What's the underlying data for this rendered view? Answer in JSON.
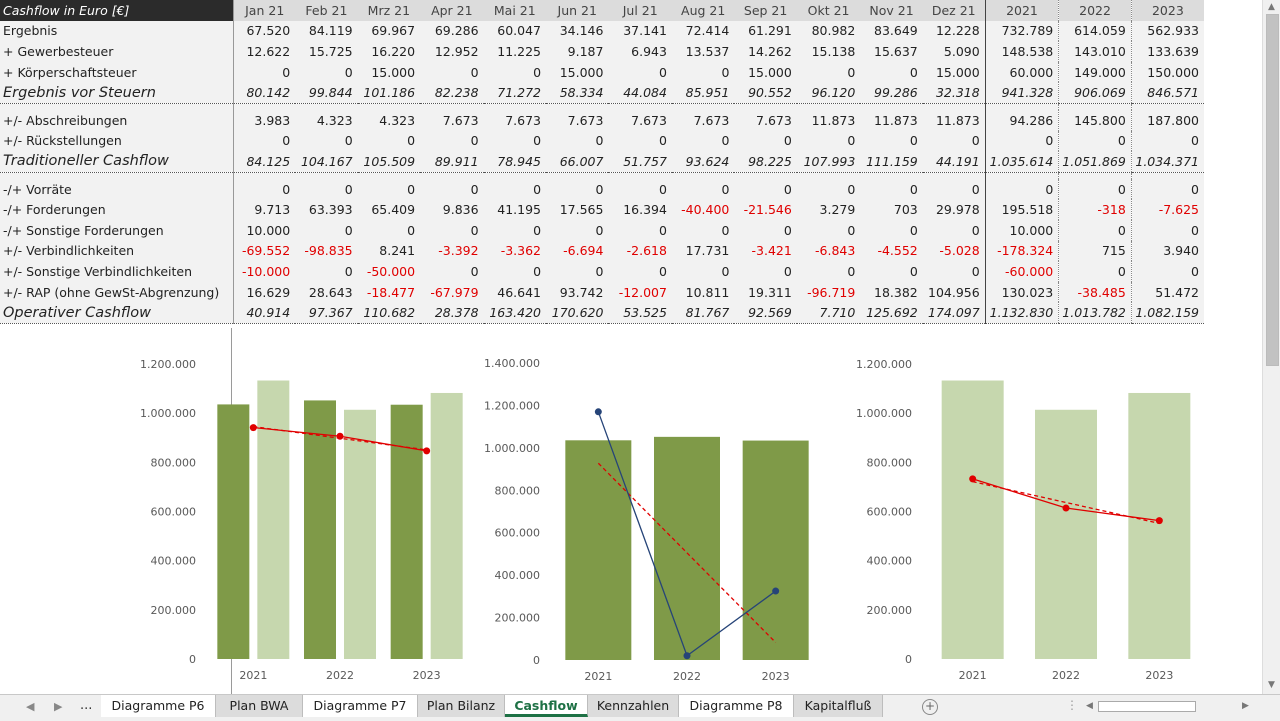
{
  "table": {
    "corner_label": "Cashflow in Euro [€]",
    "columns": [
      "Jan 21",
      "Feb 21",
      "Mrz 21",
      "Apr 21",
      "Mai 21",
      "Jun 21",
      "Jul 21",
      "Aug 21",
      "Sep 21",
      "Okt 21",
      "Nov 21",
      "Dez 21",
      "2021",
      "2022",
      "2023"
    ],
    "rows": [
      {
        "label": "Ergebnis",
        "kind": "normal",
        "values": [
          "67.520",
          "84.119",
          "69.967",
          "69.286",
          "60.047",
          "34.146",
          "37.141",
          "72.414",
          "61.291",
          "80.982",
          "83.649",
          "12.228",
          "732.789",
          "614.059",
          "562.933"
        ]
      },
      {
        "label": "+ Gewerbesteuer",
        "kind": "normal",
        "values": [
          "12.622",
          "15.725",
          "16.220",
          "12.952",
          "11.225",
          "9.187",
          "6.943",
          "13.537",
          "14.262",
          "15.138",
          "15.637",
          "5.090",
          "148.538",
          "143.010",
          "133.639"
        ]
      },
      {
        "label": "+ Körperschaftsteuer",
        "kind": "normal",
        "values": [
          "0",
          "0",
          "15.000",
          "0",
          "0",
          "15.000",
          "0",
          "0",
          "15.000",
          "0",
          "0",
          "15.000",
          "60.000",
          "149.000",
          "150.000"
        ]
      },
      {
        "label": "Ergebnis vor Steuern",
        "kind": "sum-sep",
        "values": [
          "80.142",
          "99.844",
          "101.186",
          "82.238",
          "71.272",
          "58.334",
          "44.084",
          "85.951",
          "90.552",
          "96.120",
          "99.286",
          "32.318",
          "941.328",
          "906.069",
          "846.571"
        ]
      },
      {
        "kind": "blank"
      },
      {
        "label": "+/- Abschreibungen",
        "kind": "normal",
        "values": [
          "3.983",
          "4.323",
          "4.323",
          "7.673",
          "7.673",
          "7.673",
          "7.673",
          "7.673",
          "7.673",
          "11.873",
          "11.873",
          "11.873",
          "94.286",
          "145.800",
          "187.800"
        ]
      },
      {
        "label": "+/- Rückstellungen",
        "kind": "normal",
        "values": [
          "0",
          "0",
          "0",
          "0",
          "0",
          "0",
          "0",
          "0",
          "0",
          "0",
          "0",
          "0",
          "0",
          "0",
          "0"
        ]
      },
      {
        "label": "Traditioneller Cashflow",
        "kind": "sum-sep",
        "values": [
          "84.125",
          "104.167",
          "105.509",
          "89.911",
          "78.945",
          "66.007",
          "51.757",
          "93.624",
          "98.225",
          "107.993",
          "111.159",
          "44.191",
          "1.035.614",
          "1.051.869",
          "1.034.371"
        ]
      },
      {
        "kind": "blank"
      },
      {
        "label": "-/+ Vorräte",
        "kind": "normal",
        "values": [
          "0",
          "0",
          "0",
          "0",
          "0",
          "0",
          "0",
          "0",
          "0",
          "0",
          "0",
          "0",
          "0",
          "0",
          "0"
        ]
      },
      {
        "label": "-/+ Forderungen",
        "kind": "normal",
        "values": [
          "9.713",
          "63.393",
          "65.409",
          "9.836",
          "41.195",
          "17.565",
          "16.394",
          "-40.400",
          "-21.546",
          "3.279",
          "703",
          "29.978",
          "195.518",
          "-318",
          "-7.625"
        ]
      },
      {
        "label": "-/+ Sonstige Forderungen",
        "kind": "normal",
        "values": [
          "10.000",
          "0",
          "0",
          "0",
          "0",
          "0",
          "0",
          "0",
          "0",
          "0",
          "0",
          "0",
          "10.000",
          "0",
          "0"
        ]
      },
      {
        "label": "+/- Verbindlichkeiten",
        "kind": "normal",
        "values": [
          "-69.552",
          "-98.835",
          "8.241",
          "-3.392",
          "-3.362",
          "-6.694",
          "-2.618",
          "17.731",
          "-3.421",
          "-6.843",
          "-4.552",
          "-5.028",
          "-178.324",
          "715",
          "3.940"
        ]
      },
      {
        "label": "+/- Sonstige Verbindlichkeiten",
        "kind": "normal",
        "values": [
          "-10.000",
          "0",
          "-50.000",
          "0",
          "0",
          "0",
          "0",
          "0",
          "0",
          "0",
          "0",
          "0",
          "-60.000",
          "0",
          "0"
        ]
      },
      {
        "label": "+/- RAP (ohne GewSt-Abgrenzung)",
        "kind": "normal",
        "values": [
          "16.629",
          "28.643",
          "-18.477",
          "-67.979",
          "46.641",
          "93.742",
          "-12.007",
          "10.811",
          "19.311",
          "-96.719",
          "18.382",
          "104.956",
          "130.023",
          "-38.485",
          "51.472"
        ]
      },
      {
        "label": "Operativer Cashflow",
        "kind": "sum-sep",
        "values": [
          "40.914",
          "97.367",
          "110.682",
          "28.378",
          "163.420",
          "170.620",
          "53.525",
          "81.767",
          "92.569",
          "7.710",
          "125.692",
          "174.097",
          "1.132.830",
          "1.013.782",
          "1.082.159"
        ]
      }
    ]
  },
  "chart_data": [
    {
      "type": "bar",
      "categories": [
        "2021",
        "2022",
        "2023"
      ],
      "series": [
        {
          "values": [
            1035614,
            1051869,
            1034371
          ],
          "color": "#7f9a48"
        },
        {
          "values": [
            1132830,
            1013782,
            1082159
          ],
          "color": "#c6d7ae"
        },
        {
          "kind": "line",
          "values": [
            941328,
            906069,
            846571
          ],
          "color": "#e00000",
          "trendline": "dashed"
        }
      ],
      "ylim": [
        0,
        1200000
      ],
      "yticks": [
        0,
        200000,
        400000,
        600000,
        800000,
        1000000,
        1200000
      ],
      "ytick_labels": [
        "0",
        "200.000",
        "400.000",
        "600.000",
        "800.000",
        "1.000.000",
        "1.200.000"
      ],
      "grid": false
    },
    {
      "type": "bar",
      "categories": [
        "2021",
        "2022",
        "2023"
      ],
      "series": [
        {
          "values": [
            1035614,
            1051869,
            1034371
          ],
          "color": "#7f9a48"
        },
        {
          "kind": "line",
          "values": [
            1170000,
            20000,
            325000
          ],
          "color": "#264478",
          "trendline": "dashed-red"
        }
      ],
      "ylim": [
        0,
        1400000
      ],
      "yticks": [
        0,
        200000,
        400000,
        600000,
        800000,
        1000000,
        1200000,
        1400000
      ],
      "ytick_labels": [
        "0",
        "200.000",
        "400.000",
        "600.000",
        "800.000",
        "1.000.000",
        "1.200.000",
        "1.400.000"
      ],
      "grid": false
    },
    {
      "type": "bar",
      "categories": [
        "2021",
        "2022",
        "2023"
      ],
      "series": [
        {
          "values": [
            1132830,
            1013782,
            1082159
          ],
          "color": "#c6d7ae"
        },
        {
          "kind": "line",
          "values": [
            732789,
            614059,
            562933
          ],
          "color": "#e00000",
          "trendline": "dashed"
        }
      ],
      "ylim": [
        0,
        1200000
      ],
      "yticks": [
        0,
        200000,
        400000,
        600000,
        800000,
        1000000,
        1200000
      ],
      "ytick_labels": [
        "0",
        "200.000",
        "400.000",
        "600.000",
        "800.000",
        "1.000.000",
        "1.200.000"
      ],
      "grid": false
    }
  ],
  "tabs": {
    "more": "...",
    "items": [
      {
        "label": "Diagramme P6",
        "style": "white"
      },
      {
        "label": "Plan BWA",
        "style": "gray"
      },
      {
        "label": "Diagramme P7",
        "style": "white"
      },
      {
        "label": "Plan Bilanz",
        "style": "gray"
      },
      {
        "label": "Cashflow",
        "style": "active"
      },
      {
        "label": "Kennzahlen",
        "style": "gray"
      },
      {
        "label": "Diagramme P8",
        "style": "white"
      },
      {
        "label": "Kapitalfluß",
        "style": "gray"
      }
    ],
    "add": "+"
  },
  "icons": {
    "prev_sheet": "triangle-left-icon",
    "next_sheet": "triangle-right-icon",
    "scroll_left": "triangle-left-icon",
    "scroll_right": "triangle-right-icon",
    "scroll_up": "triangle-up-icon",
    "scroll_down": "triangle-down-icon"
  }
}
